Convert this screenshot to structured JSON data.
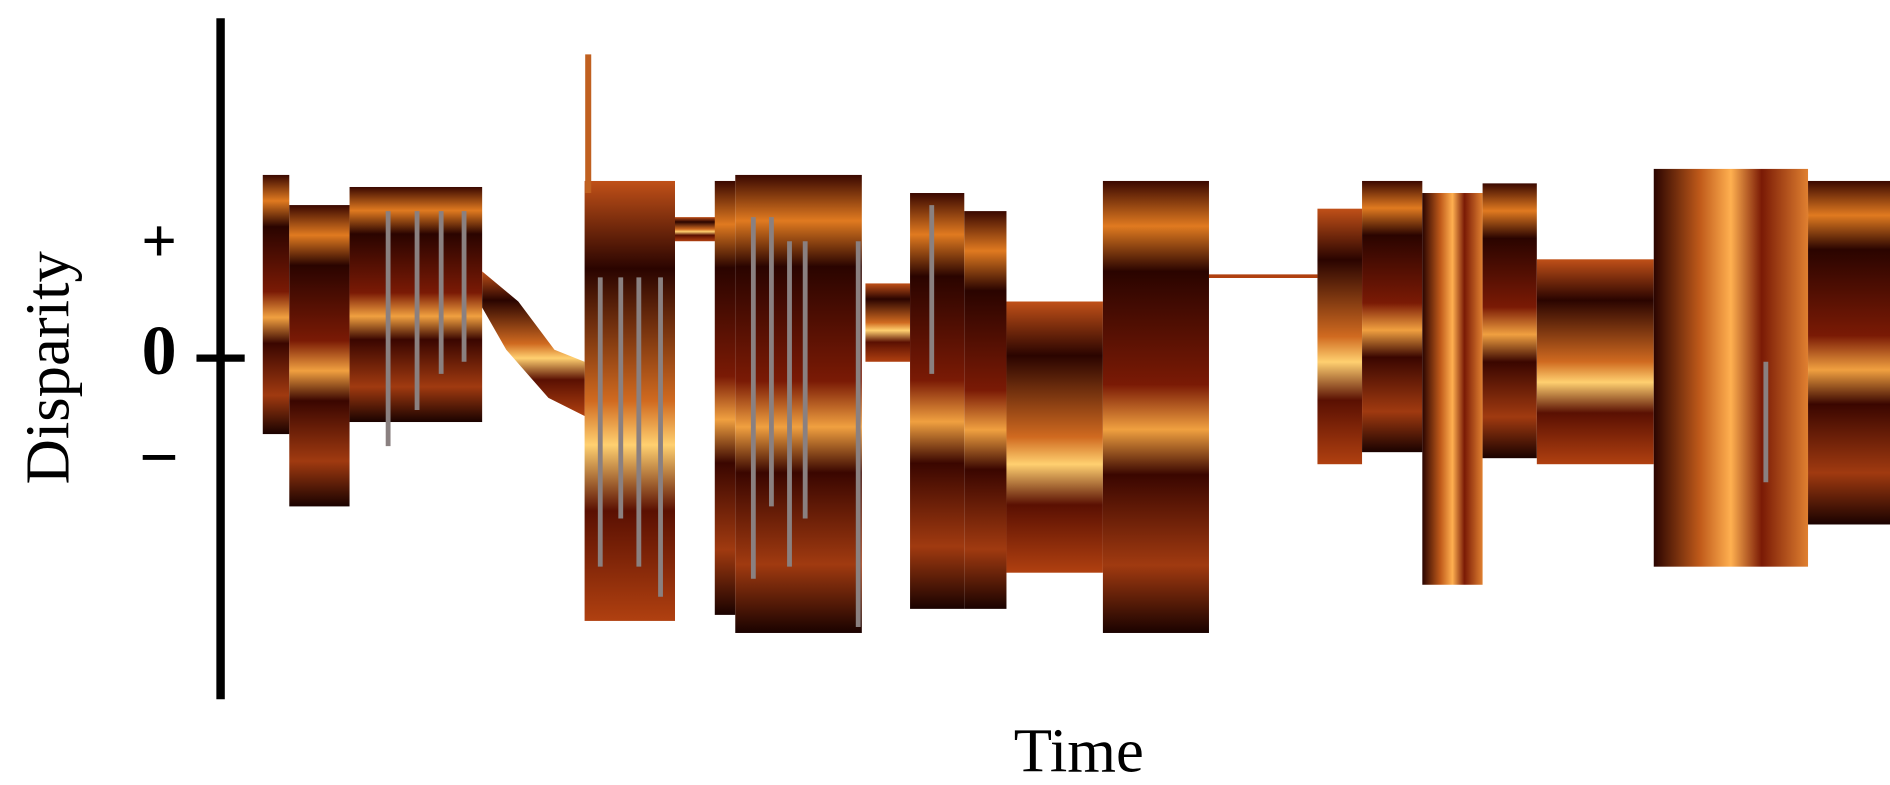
{
  "figure": {
    "y_axis": {
      "label": "Disparity",
      "ticks": [
        "+",
        "0",
        "−"
      ]
    },
    "x_axis": {
      "label": "Time"
    }
  }
}
